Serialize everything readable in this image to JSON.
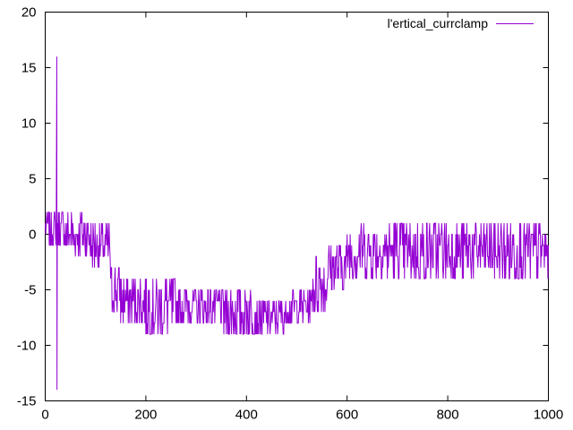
{
  "chart_data": {
    "type": "line",
    "title": "",
    "xlabel": "",
    "ylabel": "",
    "xlim": [
      0,
      1000
    ],
    "ylim": [
      -15,
      20
    ],
    "x_ticks": [
      "0",
      "200",
      "400",
      "600",
      "800",
      "1000"
    ],
    "y_ticks": [
      "-15",
      "-10",
      "-5",
      "0",
      "5",
      "10",
      "15",
      "20"
    ],
    "grid": false,
    "legend_position": "top-right",
    "series": [
      {
        "name": "l'ertical_currclamp",
        "color": "#9400d3",
        "segments": [
          {
            "x": [
              0,
              23
            ],
            "low": -1,
            "high": 2
          },
          {
            "x": [
              23,
              24
            ],
            "low": -14,
            "high": 16
          },
          {
            "x": [
              24,
              40
            ],
            "low": -1,
            "high": 2
          },
          {
            "x": [
              40,
              90
            ],
            "low": -2,
            "high": 2
          },
          {
            "x": [
              90,
              130
            ],
            "low": -3,
            "high": 1
          },
          {
            "x": [
              130,
              150
            ],
            "low": -7,
            "high": -3
          },
          {
            "x": [
              150,
              200
            ],
            "low": -8,
            "high": -4
          },
          {
            "x": [
              200,
              260
            ],
            "low": -9,
            "high": -4
          },
          {
            "x": [
              260,
              350
            ],
            "low": -8,
            "high": -5
          },
          {
            "x": [
              350,
              420
            ],
            "low": -9,
            "high": -5
          },
          {
            "x": [
              420,
              480
            ],
            "low": -9,
            "high": -6
          },
          {
            "x": [
              480,
              530
            ],
            "low": -8,
            "high": -5
          },
          {
            "x": [
              530,
              560
            ],
            "low": -7,
            "high": -2
          },
          {
            "x": [
              560,
              600
            ],
            "low": -5,
            "high": -1
          },
          {
            "x": [
              600,
              1000
            ],
            "low": -4,
            "high": 1
          }
        ],
        "extremes": {
          "min": {
            "x": 23,
            "y": -14
          },
          "max": {
            "x": 23,
            "y": 16
          }
        }
      }
    ]
  }
}
